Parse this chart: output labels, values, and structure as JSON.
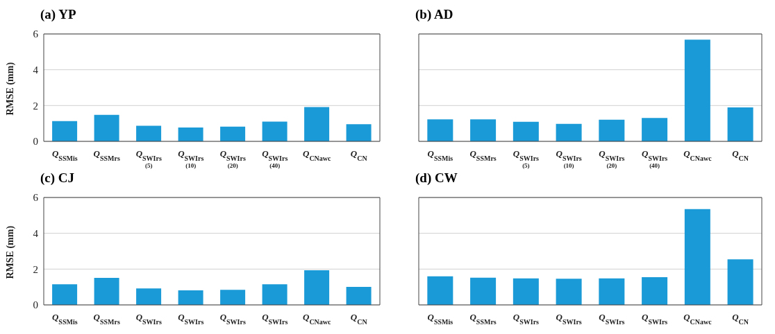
{
  "chart_data": [
    {
      "type": "bar",
      "title": "(a) YP",
      "ylabel": "RMSE (mm)",
      "categories": [
        "Q$_{SSMis}$",
        "Q$_{SSMrs}$",
        "Q$_{SWIrs}$\n(5)",
        "Q$_{SWIrs}$\n(10)",
        "Q$_{SWIrs}$\n(20)",
        "Q$_{SWIrs}$\n(40)",
        "Q$_{CNawc}$",
        "Q$_{CN}$"
      ],
      "values": [
        1.13,
        1.48,
        0.87,
        0.77,
        0.82,
        1.1,
        1.92,
        0.96
      ],
      "color": "#1a9ad6",
      "ylim": [
        0,
        6
      ],
      "yticks": [
        0,
        2,
        4,
        6
      ],
      "grid": "y"
    },
    {
      "type": "bar",
      "title": "(b) AD",
      "categories": [
        "Q$_{SSMis}$",
        "Q$_{SSMrs}$",
        "Q$_{SWIrs}$\n(5)",
        "Q$_{SWIrs}$\n(10)",
        "Q$_{SWIrs}$\n(20)",
        "Q$_{SWIrs}$\n(40)",
        "Q$_{CNawc}$",
        "Q$_{CN}$"
      ],
      "values": [
        1.23,
        1.23,
        1.09,
        0.98,
        1.21,
        1.31,
        5.68,
        1.9
      ],
      "color": "#1a9ad6",
      "ylim": [
        0,
        6
      ],
      "yticks": [
        0,
        2,
        4,
        6
      ],
      "grid": "y",
      "tick_labels": "x"
    },
    {
      "type": "bar",
      "title": "(c) CJ",
      "ylabel": "RMSE (mm)",
      "categories": [
        "Q$_{SSMis}$",
        "Q$_{SSMrs}$",
        "Q$_{SWIrs}$",
        "Q$_{SWIrs}$",
        "Q$_{SWIrs}$",
        "Q$_{SWIrs}$",
        "Q$_{CNawc}$",
        "Q$_{CN}$"
      ],
      "values": [
        1.15,
        1.51,
        0.92,
        0.81,
        0.84,
        1.15,
        1.94,
        1.01
      ],
      "color": "#1a9ad6",
      "ylim": [
        0,
        6
      ],
      "yticks": [
        0,
        2,
        4,
        6
      ],
      "grid": "y"
    },
    {
      "type": "bar",
      "title": "(d) CW",
      "categories": [
        "Q$_{SSMis}$",
        "Q$_{SSMrs}$",
        "Q$_{SWIrs}$",
        "Q$_{SWIrs}$",
        "Q$_{SWIrs}$",
        "Q$_{SWIrs}$",
        "Q$_{CNawc}$",
        "Q$_{CN}$"
      ],
      "values": [
        1.6,
        1.52,
        1.48,
        1.46,
        1.48,
        1.55,
        5.35,
        2.55
      ],
      "color": "#1a9ad6",
      "ylim": [
        0,
        6
      ],
      "yticks": [
        0,
        2,
        4,
        6
      ],
      "grid": "y",
      "tick_labels": "x"
    }
  ]
}
